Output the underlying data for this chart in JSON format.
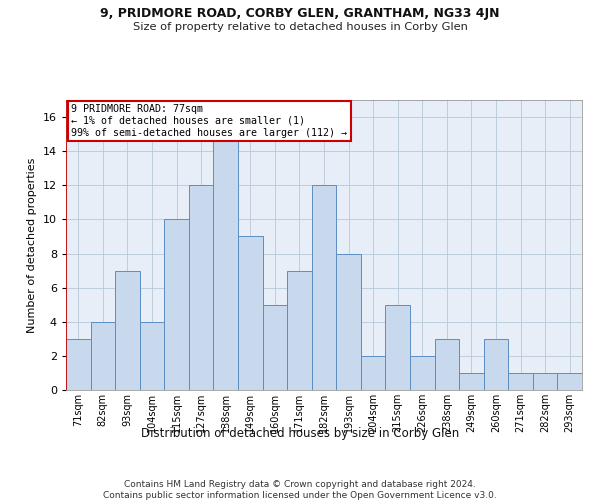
{
  "title1": "9, PRIDMORE ROAD, CORBY GLEN, GRANTHAM, NG33 4JN",
  "title2": "Size of property relative to detached houses in Corby Glen",
  "xlabel": "Distribution of detached houses by size in Corby Glen",
  "ylabel": "Number of detached properties",
  "categories": [
    "71sqm",
    "82sqm",
    "93sqm",
    "104sqm",
    "115sqm",
    "127sqm",
    "138sqm",
    "149sqm",
    "160sqm",
    "171sqm",
    "182sqm",
    "193sqm",
    "204sqm",
    "215sqm",
    "226sqm",
    "238sqm",
    "249sqm",
    "260sqm",
    "271sqm",
    "282sqm",
    "293sqm"
  ],
  "values": [
    3,
    4,
    7,
    4,
    10,
    12,
    15,
    9,
    5,
    7,
    12,
    8,
    2,
    5,
    2,
    3,
    1,
    3,
    1,
    1,
    1
  ],
  "bar_color": "#c8d9ee",
  "bar_edge_color": "#5b8ec4",
  "highlight_color": "#cc0000",
  "annotation_title": "9 PRIDMORE ROAD: 77sqm",
  "annotation_line1": "← 1% of detached houses are smaller (1)",
  "annotation_line2": "99% of semi-detached houses are larger (112) →",
  "annotation_box_color": "#ffffff",
  "annotation_box_edge": "#cc0000",
  "ylim": [
    0,
    17
  ],
  "yticks": [
    0,
    2,
    4,
    6,
    8,
    10,
    12,
    14,
    16
  ],
  "footnote1": "Contains HM Land Registry data © Crown copyright and database right 2024.",
  "footnote2": "Contains public sector information licensed under the Open Government Licence v3.0.",
  "background_color": "#ffffff",
  "axes_bg_color": "#e8eef7",
  "grid_color": "#b8c8d8"
}
